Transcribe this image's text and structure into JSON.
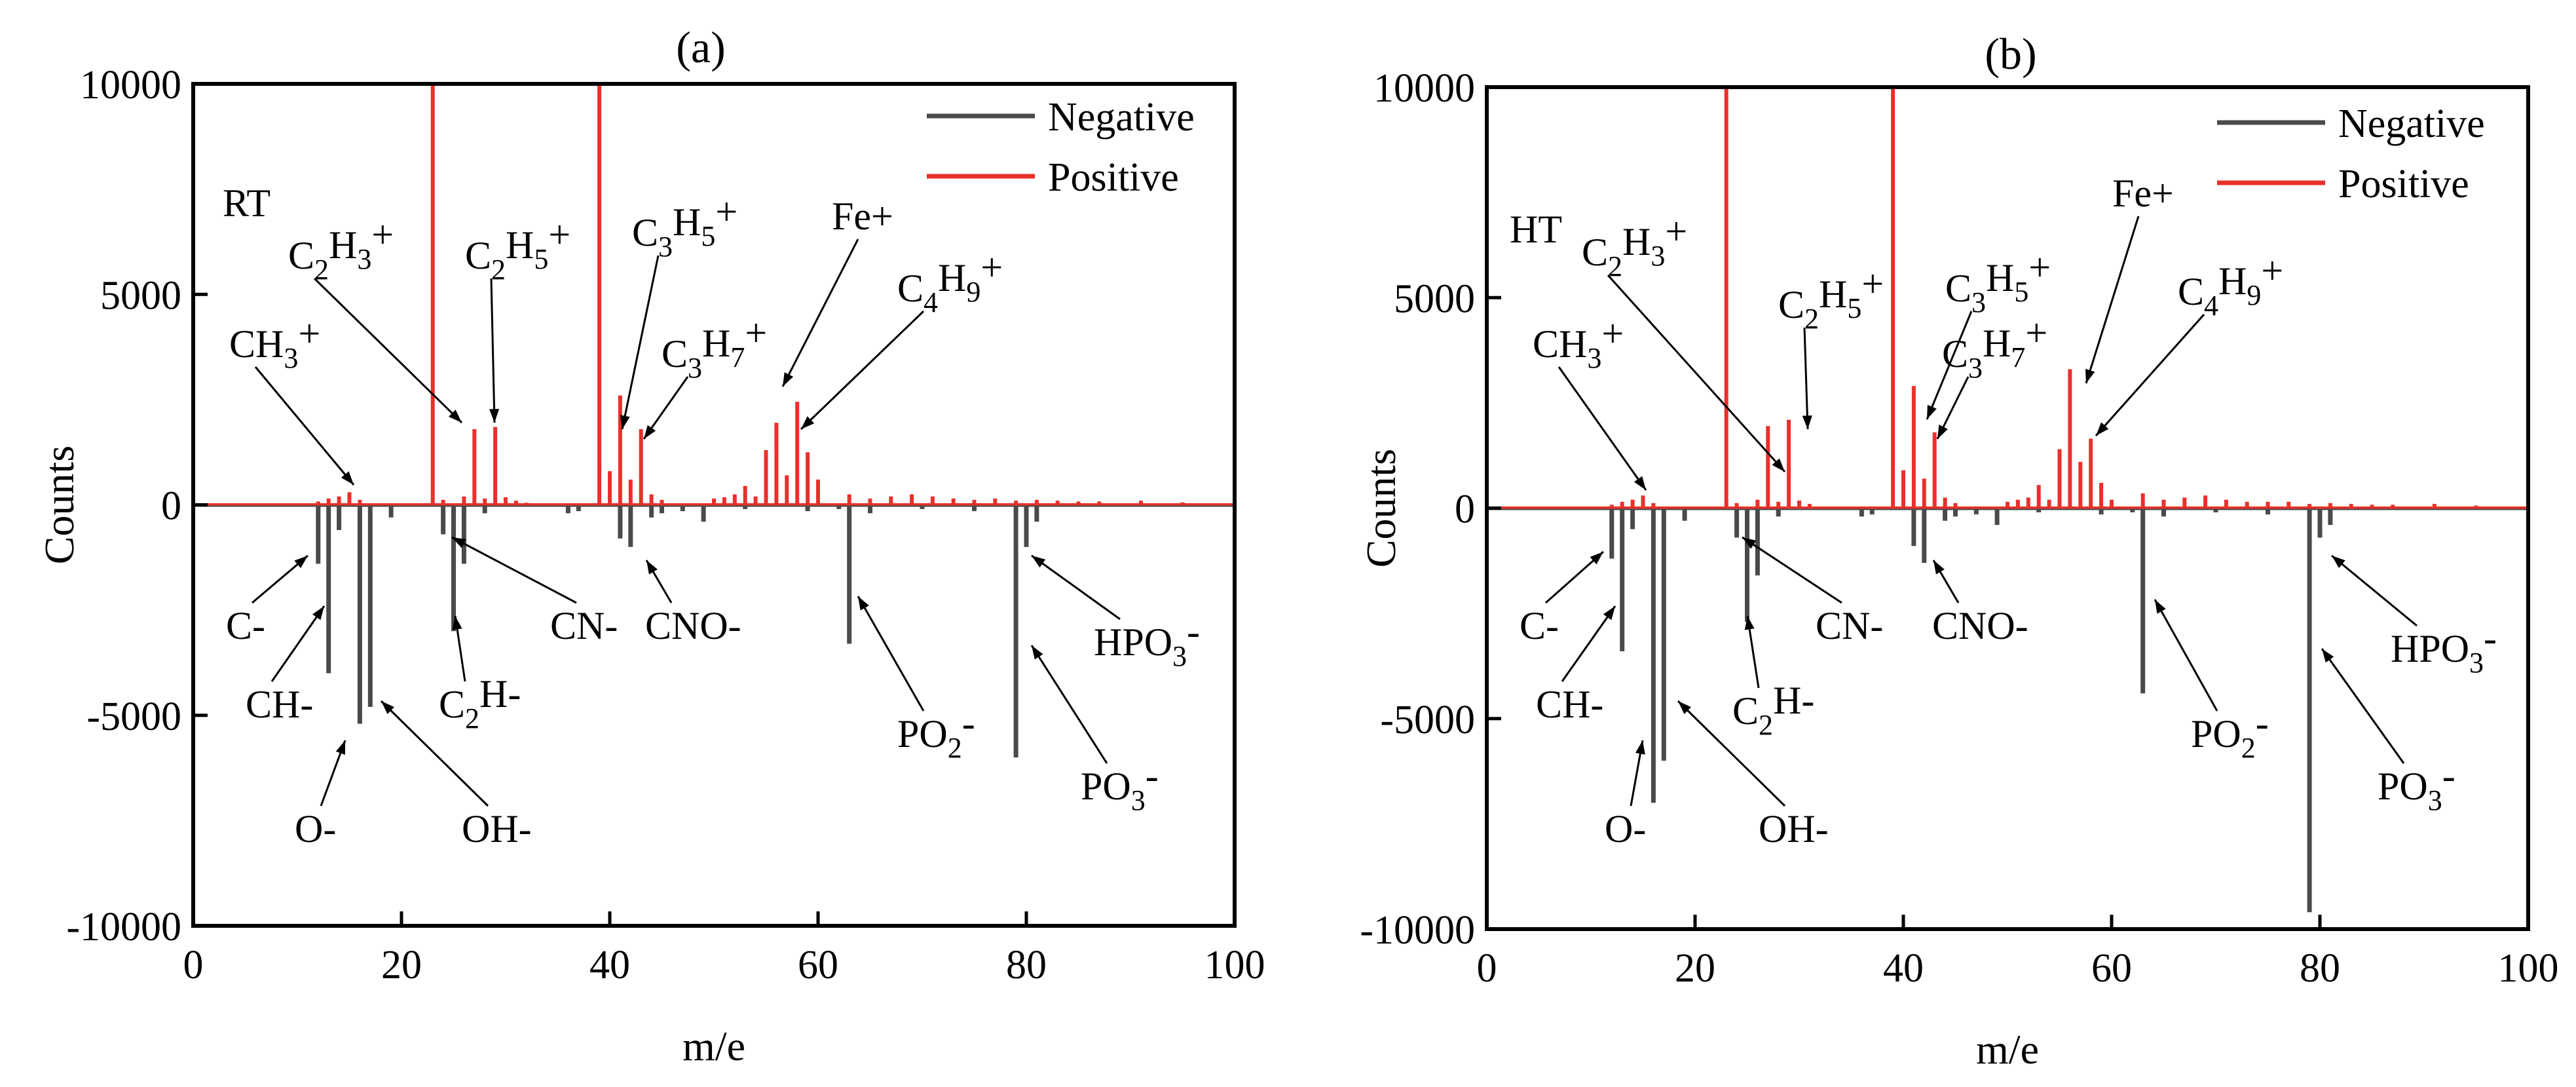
{
  "colors": {
    "negative": "#4a4a4a",
    "positive": "#e8302c",
    "axis": "#000000"
  },
  "chart_data": [
    {
      "type": "bar",
      "panel_label": "(a)",
      "condition": "RT",
      "xlabel": "m/e",
      "ylabel": "Counts",
      "xlim": [
        0,
        100
      ],
      "ylim": [
        -10000,
        10000
      ],
      "xticks": [
        0,
        20,
        40,
        60,
        80,
        100
      ],
      "yticks": [
        -10000,
        -5000,
        0,
        5000,
        10000
      ],
      "ytick_labels": [
        "-10000",
        "-5000",
        "0",
        "5000",
        "10000"
      ],
      "legend": {
        "position": "top-right",
        "entries": [
          "Negative",
          "Positive"
        ]
      },
      "series": [
        {
          "name": "Positive",
          "x": [
            12,
            13,
            14,
            15,
            16,
            23,
            24,
            26,
            27,
            28,
            29,
            30,
            31,
            32,
            39,
            40,
            41,
            42,
            43,
            44,
            45,
            50,
            51,
            52,
            53,
            54,
            55,
            56,
            57,
            58,
            59,
            60,
            63,
            65,
            67,
            69,
            71,
            73,
            75,
            77,
            79,
            81,
            83,
            85,
            87,
            91,
            95
          ],
          "values": [
            80,
            150,
            200,
            300,
            120,
            10000,
            120,
            200,
            1800,
            150,
            1850,
            180,
            100,
            50,
            10000,
            800,
            2600,
            600,
            1800,
            250,
            120,
            150,
            180,
            250,
            450,
            200,
            1300,
            1950,
            700,
            2450,
            1250,
            600,
            250,
            150,
            200,
            250,
            200,
            150,
            120,
            150,
            100,
            120,
            100,
            80,
            80,
            100,
            60
          ]
        },
        {
          "name": "Negative",
          "x": [
            12,
            13,
            14,
            16,
            17,
            19,
            24,
            25,
            26,
            28,
            36,
            37,
            41,
            42,
            44,
            45,
            47,
            49,
            53,
            59,
            62,
            63,
            65,
            70,
            75,
            79,
            80,
            81
          ],
          "values": [
            -1400,
            -4000,
            -600,
            -5200,
            -4800,
            -300,
            -700,
            -3000,
            -1400,
            -200,
            -200,
            -150,
            -800,
            -1000,
            -300,
            -200,
            -150,
            -400,
            -100,
            -150,
            -100,
            -3300,
            -200,
            -100,
            -150,
            -6000,
            -1000,
            -400
          ]
        }
      ],
      "annotations": [
        {
          "base": "CH",
          "sub": "3",
          "sup": "+",
          "x": 15
        },
        {
          "base": "C",
          "sub": "2",
          "mid": "H",
          "sub2": "3",
          "sup": "+",
          "x": 27
        },
        {
          "base": "C",
          "sub": "2",
          "mid": "H",
          "sub2": "5",
          "sup": "+",
          "x": 29
        },
        {
          "base": "C",
          "sub": "3",
          "mid": "H",
          "sub2": "5",
          "sup": "+",
          "x": 41
        },
        {
          "base": "C",
          "sub": "3",
          "mid": "H",
          "sub2": "7",
          "sup": "+",
          "x": 43
        },
        {
          "base": "Fe+",
          "x": 56
        },
        {
          "base": "C",
          "sub": "4",
          "mid": "H",
          "sub2": "9",
          "sup": "+",
          "x": 58
        },
        {
          "base": "C-",
          "x": 12
        },
        {
          "base": "CH-",
          "x": 13
        },
        {
          "base": "O-",
          "x": 16
        },
        {
          "base": "OH-",
          "x": 17
        },
        {
          "base": "C",
          "sub": "2",
          "mid": "H-",
          "x": 25
        },
        {
          "base": "CN-",
          "x": 26
        },
        {
          "base": "CNO-",
          "x": 42
        },
        {
          "base": "PO",
          "sub": "2",
          "mid": "-",
          "x": 63
        },
        {
          "base": "PO",
          "sub": "3",
          "mid": "-",
          "x": 79
        },
        {
          "base": "HPO",
          "sub": "3",
          "mid": "-",
          "x": 80
        }
      ]
    },
    {
      "type": "bar",
      "panel_label": "(b)",
      "condition": "HT",
      "xlabel": "m/e",
      "ylabel": "Counts",
      "xlim": [
        0,
        100
      ],
      "ylim": [
        -10000,
        10000
      ],
      "xticks": [
        0,
        20,
        40,
        60,
        80,
        100
      ],
      "yticks": [
        -10000,
        -5000,
        0,
        5000,
        10000
      ],
      "ytick_labels": [
        "-10000",
        "-5000",
        "0",
        "5000",
        "10000"
      ],
      "legend": {
        "position": "top-right",
        "entries": [
          "Negative",
          "Positive"
        ]
      },
      "series": [
        {
          "name": "Positive",
          "x": [
            12,
            13,
            14,
            15,
            16,
            23,
            24,
            26,
            27,
            28,
            29,
            30,
            31,
            39,
            40,
            41,
            42,
            43,
            44,
            45,
            50,
            51,
            52,
            53,
            54,
            55,
            56,
            57,
            58,
            59,
            60,
            63,
            65,
            67,
            69,
            71,
            73,
            75,
            77,
            79,
            81,
            83,
            85,
            87,
            91,
            95
          ],
          "values": [
            80,
            150,
            200,
            300,
            120,
            10000,
            120,
            200,
            1950,
            150,
            2100,
            180,
            100,
            10000,
            900,
            2900,
            700,
            1800,
            250,
            120,
            150,
            200,
            250,
            550,
            200,
            1400,
            3300,
            1100,
            1650,
            600,
            200,
            350,
            200,
            250,
            300,
            200,
            150,
            150,
            150,
            100,
            120,
            100,
            80,
            80,
            100,
            60
          ]
        },
        {
          "name": "Negative",
          "x": [
            12,
            13,
            14,
            16,
            17,
            19,
            24,
            25,
            26,
            28,
            36,
            37,
            41,
            42,
            44,
            45,
            47,
            49,
            53,
            59,
            62,
            63,
            65,
            70,
            75,
            79,
            80,
            81
          ],
          "values": [
            -1200,
            -3400,
            -500,
            -7000,
            -6000,
            -300,
            -700,
            -2700,
            -1600,
            -200,
            -200,
            -150,
            -900,
            -1300,
            -300,
            -200,
            -150,
            -400,
            -100,
            -150,
            -100,
            -4400,
            -200,
            -100,
            -150,
            -9600,
            -700,
            -400
          ]
        }
      ],
      "annotations": [
        {
          "base": "CH",
          "sub": "3",
          "sup": "+",
          "x": 15
        },
        {
          "base": "C",
          "sub": "2",
          "mid": "H",
          "sub2": "3",
          "sup": "+",
          "x": 27
        },
        {
          "base": "C",
          "sub": "2",
          "mid": "H",
          "sub2": "5",
          "sup": "+",
          "x": 29
        },
        {
          "base": "C",
          "sub": "3",
          "mid": "H",
          "sub2": "5",
          "sup": "+",
          "x": 41
        },
        {
          "base": "C",
          "sub": "3",
          "mid": "H",
          "sub2": "7",
          "sup": "+",
          "x": 43
        },
        {
          "base": "Fe+",
          "x": 56
        },
        {
          "base": "C",
          "sub": "4",
          "mid": "H",
          "sub2": "9",
          "sup": "+",
          "x": 58
        },
        {
          "base": "C-",
          "x": 12
        },
        {
          "base": "CH-",
          "x": 13
        },
        {
          "base": "O-",
          "x": 16
        },
        {
          "base": "OH-",
          "x": 17
        },
        {
          "base": "C",
          "sub": "2",
          "mid": "H-",
          "x": 25
        },
        {
          "base": "CN-",
          "x": 26
        },
        {
          "base": "CNO-",
          "x": 42
        },
        {
          "base": "PO",
          "sub": "2",
          "mid": "-",
          "x": 63
        },
        {
          "base": "PO",
          "sub": "3",
          "mid": "-",
          "x": 79
        },
        {
          "base": "HPO",
          "sub": "3",
          "mid": "-",
          "x": 80
        }
      ]
    }
  ]
}
